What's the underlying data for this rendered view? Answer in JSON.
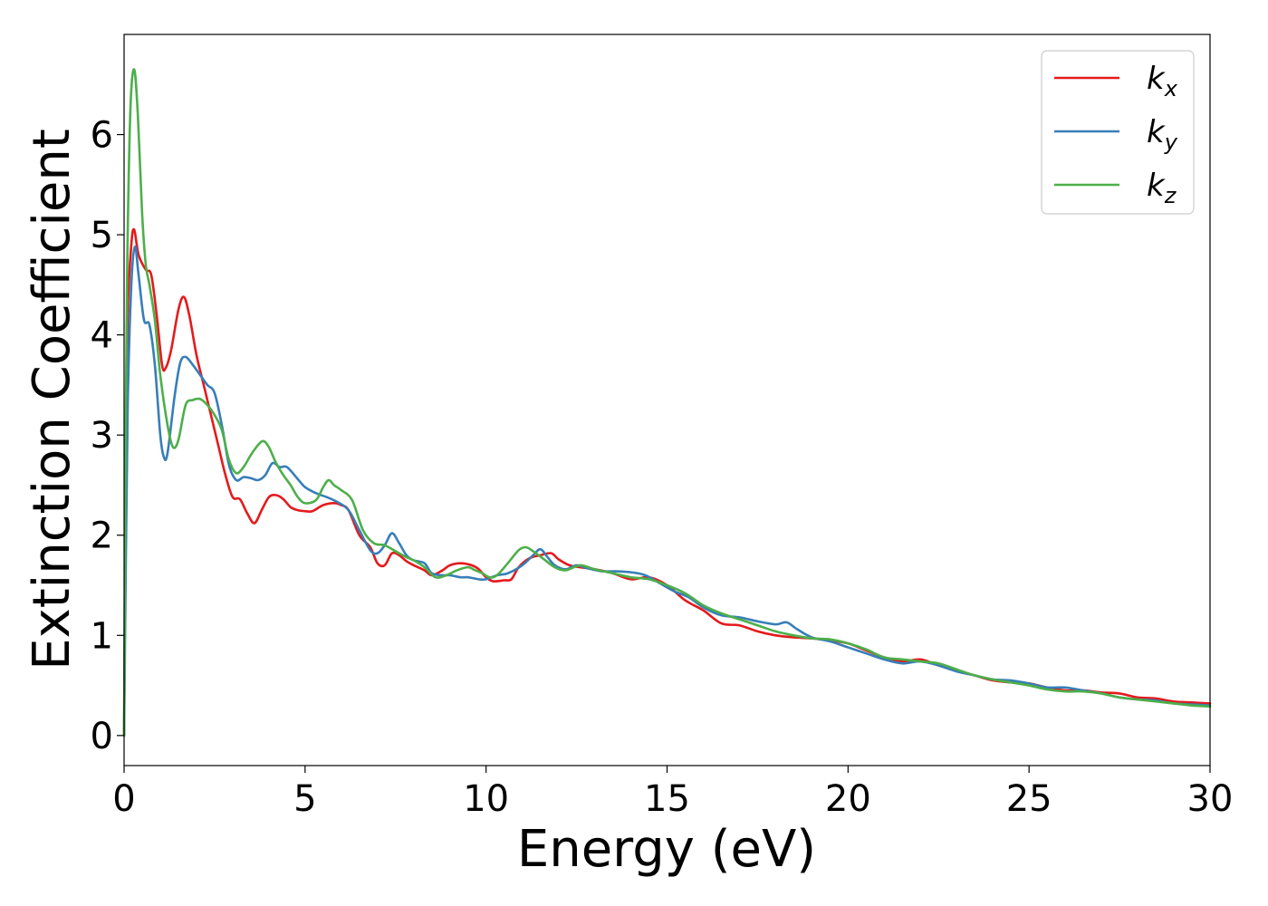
{
  "chart_data": {
    "type": "line",
    "xlabel": "Energy (eV)",
    "ylabel": "Extinction Coefficient",
    "xlim": [
      0,
      30
    ],
    "ylim": [
      -0.3,
      7.0
    ],
    "xticks": [
      0,
      5,
      10,
      15,
      20,
      25,
      30
    ],
    "yticks": [
      0,
      1,
      2,
      3,
      4,
      5,
      6
    ],
    "legend_position": "top-right",
    "grid": false,
    "series": [
      {
        "name": "k",
        "subscript": "x",
        "color": "#e41a1c",
        "points": [
          [
            0,
            0
          ],
          [
            0.05,
            2.6
          ],
          [
            0.1,
            4.2
          ],
          [
            0.2,
            4.9
          ],
          [
            0.28,
            5.05
          ],
          [
            0.4,
            4.8
          ],
          [
            0.6,
            4.65
          ],
          [
            0.75,
            4.6
          ],
          [
            0.9,
            4.2
          ],
          [
            1.05,
            3.7
          ],
          [
            1.15,
            3.67
          ],
          [
            1.3,
            3.85
          ],
          [
            1.5,
            4.25
          ],
          [
            1.65,
            4.38
          ],
          [
            1.8,
            4.2
          ],
          [
            2.0,
            3.8
          ],
          [
            2.2,
            3.5
          ],
          [
            2.4,
            3.2
          ],
          [
            2.6,
            2.9
          ],
          [
            2.8,
            2.6
          ],
          [
            3.0,
            2.38
          ],
          [
            3.2,
            2.36
          ],
          [
            3.4,
            2.22
          ],
          [
            3.6,
            2.12
          ],
          [
            3.8,
            2.25
          ],
          [
            4.0,
            2.38
          ],
          [
            4.2,
            2.4
          ],
          [
            4.4,
            2.36
          ],
          [
            4.6,
            2.28
          ],
          [
            4.8,
            2.25
          ],
          [
            5.0,
            2.24
          ],
          [
            5.2,
            2.24
          ],
          [
            5.5,
            2.3
          ],
          [
            5.8,
            2.32
          ],
          [
            6.0,
            2.3
          ],
          [
            6.2,
            2.25
          ],
          [
            6.5,
            2.0
          ],
          [
            6.8,
            1.88
          ],
          [
            7.0,
            1.72
          ],
          [
            7.2,
            1.7
          ],
          [
            7.4,
            1.82
          ],
          [
            7.6,
            1.8
          ],
          [
            7.8,
            1.74
          ],
          [
            8.0,
            1.7
          ],
          [
            8.3,
            1.65
          ],
          [
            8.5,
            1.6
          ],
          [
            8.8,
            1.65
          ],
          [
            9.0,
            1.7
          ],
          [
            9.3,
            1.72
          ],
          [
            9.6,
            1.7
          ],
          [
            9.8,
            1.66
          ],
          [
            10.0,
            1.58
          ],
          [
            10.2,
            1.54
          ],
          [
            10.5,
            1.55
          ],
          [
            10.7,
            1.56
          ],
          [
            10.9,
            1.68
          ],
          [
            11.2,
            1.77
          ],
          [
            11.5,
            1.8
          ],
          [
            11.8,
            1.82
          ],
          [
            12.0,
            1.76
          ],
          [
            12.3,
            1.7
          ],
          [
            12.6,
            1.68
          ],
          [
            13.0,
            1.66
          ],
          [
            13.5,
            1.62
          ],
          [
            14.0,
            1.56
          ],
          [
            14.5,
            1.58
          ],
          [
            15.0,
            1.5
          ],
          [
            15.5,
            1.35
          ],
          [
            16.0,
            1.25
          ],
          [
            16.5,
            1.12
          ],
          [
            17.0,
            1.1
          ],
          [
            17.5,
            1.04
          ],
          [
            18.0,
            1.0
          ],
          [
            18.5,
            0.98
          ],
          [
            19.0,
            0.97
          ],
          [
            19.5,
            0.95
          ],
          [
            20.0,
            0.92
          ],
          [
            20.5,
            0.85
          ],
          [
            21.0,
            0.78
          ],
          [
            21.5,
            0.74
          ],
          [
            22.0,
            0.76
          ],
          [
            22.5,
            0.7
          ],
          [
            23.0,
            0.65
          ],
          [
            23.5,
            0.6
          ],
          [
            24.0,
            0.55
          ],
          [
            24.5,
            0.53
          ],
          [
            25.0,
            0.52
          ],
          [
            25.5,
            0.48
          ],
          [
            26.0,
            0.45
          ],
          [
            26.5,
            0.45
          ],
          [
            27.0,
            0.43
          ],
          [
            27.5,
            0.42
          ],
          [
            28.0,
            0.38
          ],
          [
            28.5,
            0.37
          ],
          [
            29.0,
            0.34
          ],
          [
            29.5,
            0.33
          ],
          [
            30.0,
            0.32
          ]
        ]
      },
      {
        "name": "k",
        "subscript": "y",
        "color": "#377eb8",
        "points": [
          [
            0,
            0
          ],
          [
            0.05,
            1.8
          ],
          [
            0.1,
            3.3
          ],
          [
            0.2,
            4.5
          ],
          [
            0.3,
            4.88
          ],
          [
            0.4,
            4.6
          ],
          [
            0.55,
            4.15
          ],
          [
            0.7,
            4.1
          ],
          [
            0.85,
            3.7
          ],
          [
            1.0,
            3.0
          ],
          [
            1.1,
            2.78
          ],
          [
            1.2,
            2.82
          ],
          [
            1.4,
            3.4
          ],
          [
            1.55,
            3.72
          ],
          [
            1.7,
            3.78
          ],
          [
            1.9,
            3.7
          ],
          [
            2.1,
            3.6
          ],
          [
            2.3,
            3.5
          ],
          [
            2.5,
            3.42
          ],
          [
            2.7,
            3.1
          ],
          [
            2.9,
            2.7
          ],
          [
            3.1,
            2.55
          ],
          [
            3.3,
            2.58
          ],
          [
            3.5,
            2.57
          ],
          [
            3.7,
            2.55
          ],
          [
            3.9,
            2.6
          ],
          [
            4.1,
            2.72
          ],
          [
            4.3,
            2.68
          ],
          [
            4.5,
            2.68
          ],
          [
            4.8,
            2.56
          ],
          [
            5.0,
            2.48
          ],
          [
            5.3,
            2.42
          ],
          [
            5.6,
            2.38
          ],
          [
            5.9,
            2.33
          ],
          [
            6.2,
            2.25
          ],
          [
            6.5,
            2.05
          ],
          [
            6.8,
            1.85
          ],
          [
            7.0,
            1.82
          ],
          [
            7.2,
            1.9
          ],
          [
            7.4,
            2.02
          ],
          [
            7.6,
            1.92
          ],
          [
            7.8,
            1.8
          ],
          [
            8.0,
            1.75
          ],
          [
            8.3,
            1.72
          ],
          [
            8.5,
            1.62
          ],
          [
            8.8,
            1.6
          ],
          [
            9.0,
            1.6
          ],
          [
            9.3,
            1.58
          ],
          [
            9.5,
            1.58
          ],
          [
            9.8,
            1.56
          ],
          [
            10.0,
            1.56
          ],
          [
            10.3,
            1.6
          ],
          [
            10.6,
            1.62
          ],
          [
            11.0,
            1.7
          ],
          [
            11.3,
            1.8
          ],
          [
            11.5,
            1.86
          ],
          [
            11.7,
            1.78
          ],
          [
            11.9,
            1.7
          ],
          [
            12.2,
            1.66
          ],
          [
            12.5,
            1.7
          ],
          [
            12.8,
            1.67
          ],
          [
            13.2,
            1.64
          ],
          [
            13.6,
            1.64
          ],
          [
            14.0,
            1.63
          ],
          [
            14.4,
            1.6
          ],
          [
            14.8,
            1.52
          ],
          [
            15.2,
            1.44
          ],
          [
            15.6,
            1.38
          ],
          [
            16.0,
            1.28
          ],
          [
            16.5,
            1.2
          ],
          [
            17.0,
            1.18
          ],
          [
            17.5,
            1.14
          ],
          [
            18.0,
            1.11
          ],
          [
            18.3,
            1.13
          ],
          [
            18.6,
            1.06
          ],
          [
            19.0,
            0.98
          ],
          [
            19.5,
            0.94
          ],
          [
            20.0,
            0.88
          ],
          [
            20.5,
            0.82
          ],
          [
            21.0,
            0.76
          ],
          [
            21.5,
            0.72
          ],
          [
            22.0,
            0.74
          ],
          [
            22.5,
            0.7
          ],
          [
            23.0,
            0.64
          ],
          [
            23.5,
            0.6
          ],
          [
            24.0,
            0.56
          ],
          [
            24.5,
            0.55
          ],
          [
            25.0,
            0.52
          ],
          [
            25.5,
            0.48
          ],
          [
            26.0,
            0.48
          ],
          [
            26.5,
            0.45
          ],
          [
            27.0,
            0.42
          ],
          [
            27.5,
            0.38
          ],
          [
            28.0,
            0.36
          ],
          [
            28.5,
            0.35
          ],
          [
            29.0,
            0.32
          ],
          [
            29.5,
            0.31
          ],
          [
            30.0,
            0.3
          ]
        ]
      },
      {
        "name": "k",
        "subscript": "z",
        "color": "#4daf4a",
        "points": [
          [
            0,
            0
          ],
          [
            0.05,
            3.3
          ],
          [
            0.1,
            5.0
          ],
          [
            0.18,
            6.3
          ],
          [
            0.28,
            6.65
          ],
          [
            0.38,
            6.2
          ],
          [
            0.5,
            5.2
          ],
          [
            0.6,
            4.7
          ],
          [
            0.7,
            4.5
          ],
          [
            0.85,
            4.15
          ],
          [
            1.0,
            3.6
          ],
          [
            1.2,
            3.1
          ],
          [
            1.35,
            2.88
          ],
          [
            1.5,
            2.95
          ],
          [
            1.7,
            3.3
          ],
          [
            1.9,
            3.35
          ],
          [
            2.1,
            3.36
          ],
          [
            2.3,
            3.3
          ],
          [
            2.5,
            3.2
          ],
          [
            2.7,
            3.05
          ],
          [
            2.9,
            2.75
          ],
          [
            3.1,
            2.62
          ],
          [
            3.3,
            2.68
          ],
          [
            3.5,
            2.8
          ],
          [
            3.7,
            2.9
          ],
          [
            3.85,
            2.94
          ],
          [
            4.0,
            2.88
          ],
          [
            4.2,
            2.72
          ],
          [
            4.4,
            2.6
          ],
          [
            4.6,
            2.5
          ],
          [
            4.8,
            2.38
          ],
          [
            5.0,
            2.32
          ],
          [
            5.3,
            2.35
          ],
          [
            5.5,
            2.48
          ],
          [
            5.65,
            2.55
          ],
          [
            5.8,
            2.5
          ],
          [
            6.0,
            2.45
          ],
          [
            6.3,
            2.35
          ],
          [
            6.6,
            2.05
          ],
          [
            6.9,
            1.92
          ],
          [
            7.2,
            1.9
          ],
          [
            7.5,
            1.84
          ],
          [
            7.8,
            1.78
          ],
          [
            8.0,
            1.75
          ],
          [
            8.3,
            1.68
          ],
          [
            8.6,
            1.58
          ],
          [
            8.9,
            1.6
          ],
          [
            9.2,
            1.65
          ],
          [
            9.5,
            1.68
          ],
          [
            9.7,
            1.65
          ],
          [
            9.9,
            1.62
          ],
          [
            10.1,
            1.58
          ],
          [
            10.3,
            1.6
          ],
          [
            10.6,
            1.72
          ],
          [
            10.9,
            1.85
          ],
          [
            11.1,
            1.88
          ],
          [
            11.3,
            1.84
          ],
          [
            11.6,
            1.76
          ],
          [
            11.9,
            1.68
          ],
          [
            12.2,
            1.65
          ],
          [
            12.6,
            1.7
          ],
          [
            13.0,
            1.66
          ],
          [
            13.5,
            1.62
          ],
          [
            14.0,
            1.58
          ],
          [
            14.5,
            1.56
          ],
          [
            15.0,
            1.5
          ],
          [
            15.5,
            1.42
          ],
          [
            16.0,
            1.3
          ],
          [
            16.5,
            1.22
          ],
          [
            17.0,
            1.16
          ],
          [
            17.5,
            1.1
          ],
          [
            18.0,
            1.04
          ],
          [
            18.5,
            1.0
          ],
          [
            19.0,
            0.97
          ],
          [
            19.5,
            0.96
          ],
          [
            20.0,
            0.92
          ],
          [
            20.5,
            0.86
          ],
          [
            21.0,
            0.78
          ],
          [
            21.5,
            0.76
          ],
          [
            22.0,
            0.74
          ],
          [
            22.5,
            0.72
          ],
          [
            23.0,
            0.66
          ],
          [
            23.5,
            0.6
          ],
          [
            24.0,
            0.56
          ],
          [
            24.5,
            0.53
          ],
          [
            25.0,
            0.5
          ],
          [
            25.5,
            0.46
          ],
          [
            26.0,
            0.44
          ],
          [
            26.5,
            0.44
          ],
          [
            27.0,
            0.42
          ],
          [
            27.5,
            0.38
          ],
          [
            28.0,
            0.36
          ],
          [
            28.5,
            0.34
          ],
          [
            29.0,
            0.32
          ],
          [
            29.5,
            0.3
          ],
          [
            30.0,
            0.29
          ]
        ]
      }
    ]
  }
}
